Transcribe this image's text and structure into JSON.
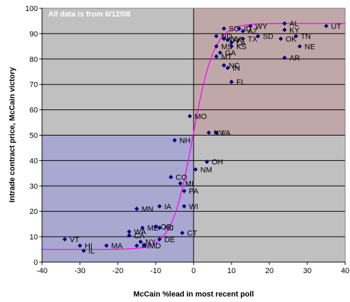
{
  "chart_data": {
    "type": "scatter",
    "title": "",
    "annotation": "All data is from 6/12/08",
    "xlabel": "McCain %lead in most recent poll",
    "ylabel": "Intrade contract price, McCain victory",
    "xlim": [
      -40,
      40
    ],
    "ylim": [
      0,
      100
    ],
    "xticks": [
      -40,
      -30,
      -20,
      -10,
      0,
      10,
      20,
      30,
      40
    ],
    "yticks": [
      0,
      10,
      20,
      30,
      40,
      50,
      60,
      70,
      80,
      90,
      100
    ],
    "grid": "horizontal",
    "colors": {
      "background": "#c0c0c0",
      "top_right_region": "#c0a8a8",
      "bottom_left_region": "#a8a8d0",
      "point": "#000080",
      "trend_line": "#ff00ff",
      "annotation_text": "#ffffff"
    },
    "points": [
      {
        "label": "UT",
        "x": 35,
        "y": 93
      },
      {
        "label": "AL",
        "x": 24,
        "y": 94
      },
      {
        "label": "KY",
        "x": 24,
        "y": 91.5
      },
      {
        "label": "WY",
        "x": 15,
        "y": 93
      },
      {
        "label": "SC",
        "x": 8,
        "y": 92
      },
      {
        "label": "ID",
        "x": 12,
        "y": 92
      },
      {
        "label": "AZ",
        "x": 13,
        "y": 91
      },
      {
        "label": "SD",
        "x": 17,
        "y": 89
      },
      {
        "label": "TN",
        "x": 27,
        "y": 89
      },
      {
        "label": "TX",
        "x": 13,
        "y": 88
      },
      {
        "label": "OK",
        "x": 23,
        "y": 88
      },
      {
        "label": "ND",
        "x": 6,
        "y": 89
      },
      {
        "label": "WV",
        "x": 8,
        "y": 88
      },
      {
        "label": "AK",
        "x": 9,
        "y": 87.5
      },
      {
        "label": "LA",
        "x": 10,
        "y": 86.5
      },
      {
        "label": "MS",
        "x": 6,
        "y": 85
      },
      {
        "label": "KS",
        "x": 10,
        "y": 85
      },
      {
        "label": "NE",
        "x": 28,
        "y": 85
      },
      {
        "label": "GA",
        "x": 7,
        "y": 82.5
      },
      {
        "label": "MT",
        "x": 6,
        "y": 81
      },
      {
        "label": "AR",
        "x": 24,
        "y": 80.5
      },
      {
        "label": "NC",
        "x": 8,
        "y": 77.5
      },
      {
        "label": "IN",
        "x": 9,
        "y": 76.5
      },
      {
        "label": "FL",
        "x": 10,
        "y": 71
      },
      {
        "label": "MO",
        "x": -1,
        "y": 57.5
      },
      {
        "label": "VA",
        "x": 6,
        "y": 51
      },
      {
        "label": "NV",
        "x": 4,
        "y": 51
      },
      {
        "label": "NH",
        "x": -5,
        "y": 48
      },
      {
        "label": "OH",
        "x": 3.5,
        "y": 39.5
      },
      {
        "label": "NM",
        "x": 0.5,
        "y": 36.5
      },
      {
        "label": "CO",
        "x": -6,
        "y": 33.5
      },
      {
        "label": "MI",
        "x": -3.5,
        "y": 31
      },
      {
        "label": "PA",
        "x": -2.5,
        "y": 28
      },
      {
        "label": "IA",
        "x": -9,
        "y": 22
      },
      {
        "label": "WI",
        "x": -2.5,
        "y": 22
      },
      {
        "label": "MN",
        "x": -15,
        "y": 21
      },
      {
        "label": "ME",
        "x": -13.5,
        "y": 13.5
      },
      {
        "label": "OR",
        "x": -10,
        "y": 14
      },
      {
        "label": "NJ",
        "x": -9,
        "y": 13.5
      },
      {
        "label": "WA",
        "x": -17,
        "y": 12
      },
      {
        "label": "CA",
        "x": -17,
        "y": 10.5
      },
      {
        "label": "CT",
        "x": -3,
        "y": 11.5
      },
      {
        "label": "DE",
        "x": -9,
        "y": 9
      },
      {
        "label": "NY",
        "x": -14,
        "y": 8
      },
      {
        "label": "RI",
        "x": -15,
        "y": 6.5
      },
      {
        "label": "MD",
        "x": -13,
        "y": 6.5
      },
      {
        "label": "VT",
        "x": -34,
        "y": 9
      },
      {
        "label": "HI",
        "x": -30,
        "y": 6.5
      },
      {
        "label": "MA",
        "x": -23,
        "y": 6.5
      },
      {
        "label": "IL",
        "x": -29,
        "y": 4.5
      }
    ]
  }
}
